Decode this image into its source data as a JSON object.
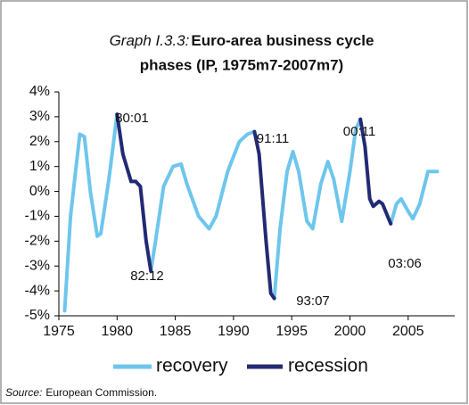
{
  "chart_data": {
    "type": "line",
    "title_prefix": "Graph I.3.3:",
    "title_lines": [
      "Euro-area business cycle",
      "phases (IP, 1975m7-2007m7)"
    ],
    "x": [
      1975.5,
      1976.0,
      1976.8,
      1977.2,
      1977.7,
      1978.3,
      1978.6,
      1979.3,
      1980.0,
      1980.5,
      1981.2,
      1981.6,
      1982.0,
      1982.5,
      1982.9,
      1983.3,
      1984.0,
      1984.8,
      1985.5,
      1986.0,
      1987.0,
      1987.9,
      1988.5,
      1989.5,
      1990.5,
      1991.2,
      1991.8,
      1992.2,
      1992.8,
      1993.2,
      1993.5,
      1994.0,
      1994.6,
      1995.1,
      1995.6,
      1996.3,
      1996.8,
      1997.5,
      1998.1,
      1998.6,
      1999.3,
      2000.0,
      2000.5,
      2000.9,
      2001.3,
      2001.7,
      2002.0,
      2002.5,
      2002.8,
      2003.5,
      2004.0,
      2004.4,
      2005.0,
      2005.4,
      2006.0,
      2006.7,
      2007.5
    ],
    "series": [
      {
        "name": "recovery",
        "color": "#6ec6ec",
        "values": [
          -4.8,
          -1.0,
          2.3,
          2.2,
          0.0,
          -1.8,
          -1.7,
          0.5,
          3.1,
          null,
          null,
          null,
          null,
          null,
          -3.2,
          -2.0,
          0.2,
          1.0,
          1.1,
          0.3,
          -1.0,
          -1.5,
          -1.0,
          0.8,
          2.0,
          2.3,
          2.4,
          null,
          null,
          null,
          -4.3,
          -1.5,
          0.8,
          1.6,
          0.8,
          -1.2,
          -1.5,
          0.3,
          1.2,
          0.5,
          -1.2,
          0.8,
          2.5,
          2.9,
          null,
          null,
          null,
          null,
          null,
          -1.3,
          -0.5,
          -0.3,
          -0.8,
          -1.1,
          -0.5,
          0.8,
          0.8
        ]
      },
      {
        "name": "recession",
        "color": "#232a74",
        "values": [
          null,
          null,
          null,
          null,
          null,
          null,
          null,
          null,
          3.1,
          1.5,
          0.4,
          0.4,
          0.2,
          -2.0,
          -3.2,
          null,
          null,
          null,
          null,
          null,
          null,
          null,
          null,
          null,
          null,
          null,
          2.4,
          1.5,
          -2.0,
          -4.1,
          -4.3,
          null,
          null,
          null,
          null,
          null,
          null,
          null,
          null,
          null,
          null,
          null,
          null,
          2.9,
          1.8,
          -0.3,
          -0.6,
          -0.4,
          -0.5,
          -1.3,
          null,
          null,
          null,
          null,
          null,
          null,
          null
        ]
      }
    ],
    "annotations": [
      "80:01",
      "82:12",
      "91:11",
      "93:07",
      "00:11",
      "03:06"
    ],
    "xlim": [
      1975,
      2009
    ],
    "xticks": [
      1975,
      1980,
      1985,
      1990,
      1995,
      2000,
      2005
    ],
    "ylim": [
      -5,
      4
    ],
    "yticks": [
      {
        "value": -5,
        "label": "-5%"
      },
      {
        "value": -4,
        "label": "-4%"
      },
      {
        "value": -3,
        "label": "-3%"
      },
      {
        "value": -2,
        "label": "-2%"
      },
      {
        "value": -1,
        "label": "-1%"
      },
      {
        "value": 0,
        "label": "0%"
      },
      {
        "value": 1,
        "label": "1%"
      },
      {
        "value": 2,
        "label": "2%"
      },
      {
        "value": 3,
        "label": "3%"
      },
      {
        "value": 4,
        "label": "4%"
      }
    ],
    "source_label": "Source:",
    "source": "European Commission."
  }
}
